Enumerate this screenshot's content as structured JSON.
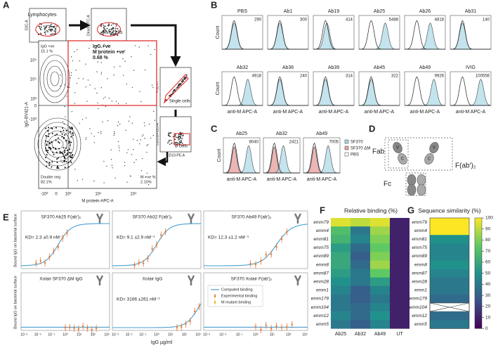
{
  "panel_labels": [
    "A",
    "B",
    "C",
    "D",
    "E",
    "F",
    "G"
  ],
  "a": {
    "gates": [
      {
        "y_label": "SSC-A",
        "x_label": "FSC-A",
        "name": "Lymphocytes"
      },
      {
        "y_label": "Dead-FITC-A",
        "x_label": "FSC-A",
        "name": "Live cells"
      },
      {
        "y_label": "FSC-H",
        "name": "Single cells"
      },
      {
        "y_label": "CD3-BV510-A",
        "x_label": "CD19-PE-A",
        "name": "B cells"
      }
    ],
    "y_label": "IgG-BV421-A",
    "x_label": "M protein-APC-A",
    "y_ticks": [
      "10⁵",
      "10⁴",
      "10³",
      "0",
      "-10³"
    ],
    "x_ticks": [
      "-10³",
      "0",
      "10³",
      "10⁴",
      "10⁵"
    ],
    "quadrants": {
      "igg_pos": [
        "IgG +ve",
        "15.1 %"
      ],
      "double_pos": [
        "IgG +ve",
        "M protein +ve",
        "0.68 %"
      ],
      "double_neg": [
        "Double neg",
        "82.1%"
      ],
      "m_pos": [
        "M +ve %",
        "2.10%"
      ]
    }
  },
  "b": {
    "y_label": "Count",
    "x_label": "anti-M APC-A",
    "plots": [
      {
        "title": "PBS",
        "mfi": 290
      },
      {
        "title": "Ab1",
        "mfi": 300
      },
      {
        "title": "Ab19",
        "mfi": 414
      },
      {
        "title": "Ab25",
        "mfi": 5488
      },
      {
        "title": "Ab26",
        "mfi": 4818
      },
      {
        "title": "Ab31",
        "mfi": 140
      },
      {
        "title": "Ab32",
        "mfi": 4918
      },
      {
        "title": "Ab36",
        "mfi": 240
      },
      {
        "title": "Ab39",
        "mfi": 314
      },
      {
        "title": "Ab45",
        "mfi": 322
      },
      {
        "title": "Ab49",
        "mfi": 9926
      },
      {
        "title": "IVIG",
        "mfi": 100556
      }
    ]
  },
  "c": {
    "y_label": "Count",
    "x_label": "anti-M APC-A",
    "plots": [
      {
        "title": "Ab25",
        "mfi": 8040
      },
      {
        "title": "Ab32",
        "mfi": 2421
      },
      {
        "title": "Ab49",
        "mfi": 7005
      }
    ],
    "legend": [
      {
        "name": "SF370",
        "color": "#a9d7e6"
      },
      {
        "name": "SF370 ΔM",
        "color": "#e9a3a3"
      },
      {
        "name": "PBS",
        "color": "#ffffff"
      }
    ]
  },
  "d": {
    "fab": "Fab",
    "fab2": "F(ab')₂",
    "fc": "Fc",
    "domain_v": "V",
    "domain_c": "C"
  },
  "e": {
    "y_label": "Bound IgG on bacterial surface",
    "x_label": "IgG µg/ml",
    "x_ticks": [
      "10⁻³",
      "10⁻²",
      "10⁻¹",
      "10⁰",
      "10¹",
      "10²",
      "10³"
    ],
    "subplots": [
      {
        "title": "SF370 Ab25 F(ab')₂",
        "kd": "KD= 2.3 ±0.9 nM⁻¹"
      },
      {
        "title": "SF370 Ab32 F(ab')₂",
        "kd": "KD= 9.1 ±2.9 nM⁻¹"
      },
      {
        "title": "SF370 Ab49 F(ab')₂",
        "kd": "KD= 12.3 ±1.2 nM⁻¹"
      },
      {
        "title": "Xolair SF370 ΔM IgG"
      },
      {
        "title": "Xolair IgG",
        "kd": "KD= 3166 ±261 nM⁻¹"
      },
      {
        "title": "SF370 Xolair F(ab')₂"
      }
    ],
    "legend": [
      {
        "name": "Computed binding",
        "color": "#4a9fd0"
      },
      {
        "name": "Experimental binding",
        "color": "#e8742c"
      },
      {
        "name": "M mutant binding",
        "color": "#f0b400"
      }
    ]
  },
  "f": {
    "title": "Relative binding (%)",
    "rows": [
      "emm79",
      "emm4",
      "emm81",
      "emm75",
      "emm89",
      "emm8",
      "emm87",
      "emm28",
      "emm1",
      "emm179",
      "emm104",
      "emm12",
      "emm5"
    ],
    "columns": [
      "Ab25",
      "Ab32",
      "Ab49",
      "UT"
    ],
    "values": [
      [
        95,
        90,
        95,
        10
      ],
      [
        70,
        40,
        85,
        10
      ],
      [
        65,
        45,
        80,
        10
      ],
      [
        55,
        35,
        75,
        10
      ],
      [
        60,
        30,
        80,
        10
      ],
      [
        60,
        35,
        85,
        10
      ],
      [
        55,
        40,
        75,
        10
      ],
      [
        50,
        40,
        55,
        10
      ],
      [
        45,
        30,
        45,
        10
      ],
      [
        40,
        30,
        40,
        10
      ],
      [
        40,
        35,
        45,
        10
      ],
      [
        45,
        35,
        50,
        10
      ],
      [
        40,
        30,
        45,
        10
      ]
    ]
  },
  "g": {
    "title": "Sequence similarity (%)",
    "rows": [
      "emm79",
      "emm4",
      "emm81",
      "emm75",
      "emm89",
      "emm8",
      "emm87",
      "emm28",
      "emm1",
      "emm179",
      "emm104",
      "emm12",
      "emm5"
    ],
    "values": [
      100,
      100,
      50,
      45,
      45,
      50,
      45,
      40,
      40,
      35,
      null,
      35,
      40
    ],
    "colorbar_lim": [
      0,
      100
    ],
    "colorbar_ticks": [
      0,
      10,
      20,
      30,
      40,
      50,
      60,
      70,
      80,
      90,
      100
    ]
  }
}
